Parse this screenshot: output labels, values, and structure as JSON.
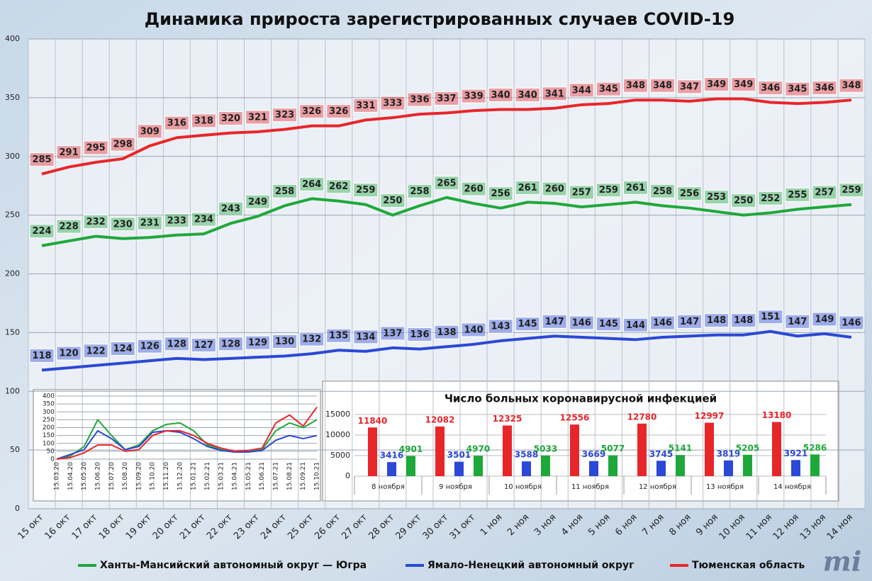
{
  "chart_data": [
    {
      "type": "line",
      "title": "Динамика прироста зарегистрированных случаев COVID-19",
      "categories": [
        "15 окт",
        "16 окт",
        "17 окт",
        "18 окт",
        "19 окт",
        "20 окт",
        "21 окт",
        "22 окт",
        "23 окт",
        "24 окт",
        "25 окт",
        "26 окт",
        "27 окт",
        "28 окт",
        "29 окт",
        "30 окт",
        "31 окт",
        "1 ноя",
        "2 ноя",
        "3 ноя",
        "4 ноя",
        "5 ноя",
        "6 ноя",
        "7 ноя",
        "8 ноя",
        "9 ноя",
        "10 ноя",
        "11 ноя",
        "12 ноя",
        "13 ноя",
        "14 ноя"
      ],
      "series": [
        {
          "name": "Ханты-Мансийский автономный округ — Югра",
          "color": "#1fa83a",
          "values": [
            224,
            228,
            232,
            230,
            231,
            233,
            234,
            243,
            249,
            258,
            264,
            262,
            259,
            250,
            258,
            265,
            260,
            256,
            261,
            260,
            257,
            259,
            261,
            258,
            256,
            253,
            250,
            252,
            255,
            257,
            259
          ]
        },
        {
          "name": "Ямало-Ненецкий автономный округ",
          "color": "#2b48d6",
          "values": [
            118,
            120,
            122,
            124,
            126,
            128,
            127,
            128,
            129,
            130,
            132,
            135,
            134,
            137,
            136,
            138,
            140,
            143,
            145,
            147,
            146,
            145,
            144,
            146,
            147,
            148,
            148,
            151,
            147,
            149,
            146
          ]
        },
        {
          "name": "Тюменская область",
          "color": "#e8262a",
          "values": [
            285,
            291,
            295,
            298,
            309,
            316,
            318,
            320,
            321,
            323,
            326,
            326,
            331,
            333,
            336,
            337,
            339,
            340,
            340,
            341,
            344,
            345,
            348,
            348,
            347,
            349,
            349,
            346,
            345,
            346,
            348
          ]
        }
      ],
      "ylim": [
        0,
        400
      ],
      "yticks": [
        0,
        50,
        100,
        150,
        200,
        250,
        300,
        350,
        400
      ],
      "grid": true,
      "data_labels": true
    },
    {
      "type": "line",
      "categories": [
        "15.03.20",
        "15.04.20",
        "15.05.20",
        "15.06.20",
        "15.07.20",
        "15.08.20",
        "15.09.20",
        "15.10.20",
        "15.11.20",
        "15.12.20",
        "15.01.21",
        "15.02.21",
        "15.03.21",
        "15.04.21",
        "15.05.21",
        "15.06.21",
        "15.07.21",
        "15.08.21",
        "15.09.21",
        "15.10.21"
      ],
      "series": [
        {
          "color": "#1fa83a",
          "values": [
            0,
            20,
            80,
            250,
            150,
            60,
            90,
            180,
            220,
            230,
            180,
            90,
            60,
            45,
            50,
            60,
            180,
            230,
            200,
            250
          ]
        },
        {
          "color": "#2b48d6",
          "values": [
            0,
            30,
            60,
            180,
            130,
            60,
            80,
            170,
            180,
            170,
            130,
            80,
            55,
            45,
            45,
            55,
            120,
            150,
            130,
            150
          ]
        },
        {
          "color": "#e8262a",
          "values": [
            0,
            10,
            40,
            90,
            90,
            50,
            60,
            150,
            180,
            180,
            150,
            100,
            70,
            50,
            55,
            70,
            230,
            280,
            210,
            330
          ]
        }
      ],
      "ylim": [
        0,
        400
      ],
      "yticks": [
        0,
        50,
        100,
        150,
        200,
        250,
        300,
        350,
        400
      ],
      "grid": true,
      "data_labels": false
    },
    {
      "type": "bar",
      "title": "Число больных коронавирусной инфекцией",
      "categories": [
        "8 ноября",
        "9 ноября",
        "10 ноября",
        "11 ноября",
        "12 ноября",
        "13 ноября",
        "14 ноября"
      ],
      "series": [
        {
          "color": "#e8262a",
          "values": [
            11840,
            12082,
            12325,
            12556,
            12780,
            12997,
            13180
          ]
        },
        {
          "color": "#2b48d6",
          "values": [
            3416,
            3501,
            3588,
            3669,
            3745,
            3819,
            3921
          ]
        },
        {
          "color": "#1fa83a",
          "values": [
            4901,
            4970,
            5033,
            5077,
            5141,
            5205,
            5286
          ]
        }
      ],
      "ylim": [
        0,
        15000
      ],
      "yticks": [
        0,
        5000,
        10000,
        15000
      ],
      "grid": true,
      "data_labels": true
    }
  ],
  "logo": "mi"
}
